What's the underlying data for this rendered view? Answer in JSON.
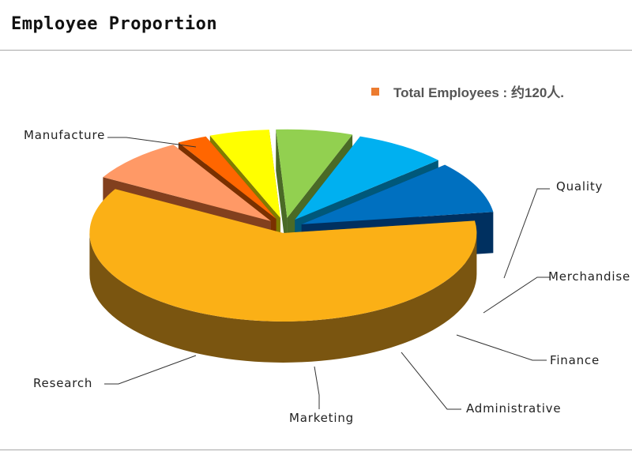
{
  "page": {
    "title": "Employee Proportion"
  },
  "legend": {
    "label": "Total Employees : 约120人.",
    "swatch_color": "#ec7c30"
  },
  "chart_data": {
    "type": "pie",
    "title": "Employee Proportion",
    "legend": "top-right",
    "total_label": "Total Employees : 约120人.",
    "slices": [
      {
        "label": "Manufacture",
        "value": 60.5,
        "color": "#fbb016",
        "side": "#7a5510"
      },
      {
        "label": "Quality",
        "value": 8.3,
        "color": "#ff9966",
        "side": "#82401e"
      },
      {
        "label": "Merchandise",
        "value": 2.5,
        "color": "#ff6600",
        "side": "#7a3000"
      },
      {
        "label": "Finance",
        "value": 5.0,
        "color": "#ffff00",
        "side": "#807c00"
      },
      {
        "label": "Administrative",
        "value": 6.4,
        "color": "#92d050",
        "side": "#4a6a26"
      },
      {
        "label": "Marketing",
        "value": 7.8,
        "color": "#00b0f0",
        "side": "#00587a"
      },
      {
        "label": "Research",
        "value": 9.5,
        "color": "#0070c0",
        "side": "#003060"
      }
    ]
  }
}
